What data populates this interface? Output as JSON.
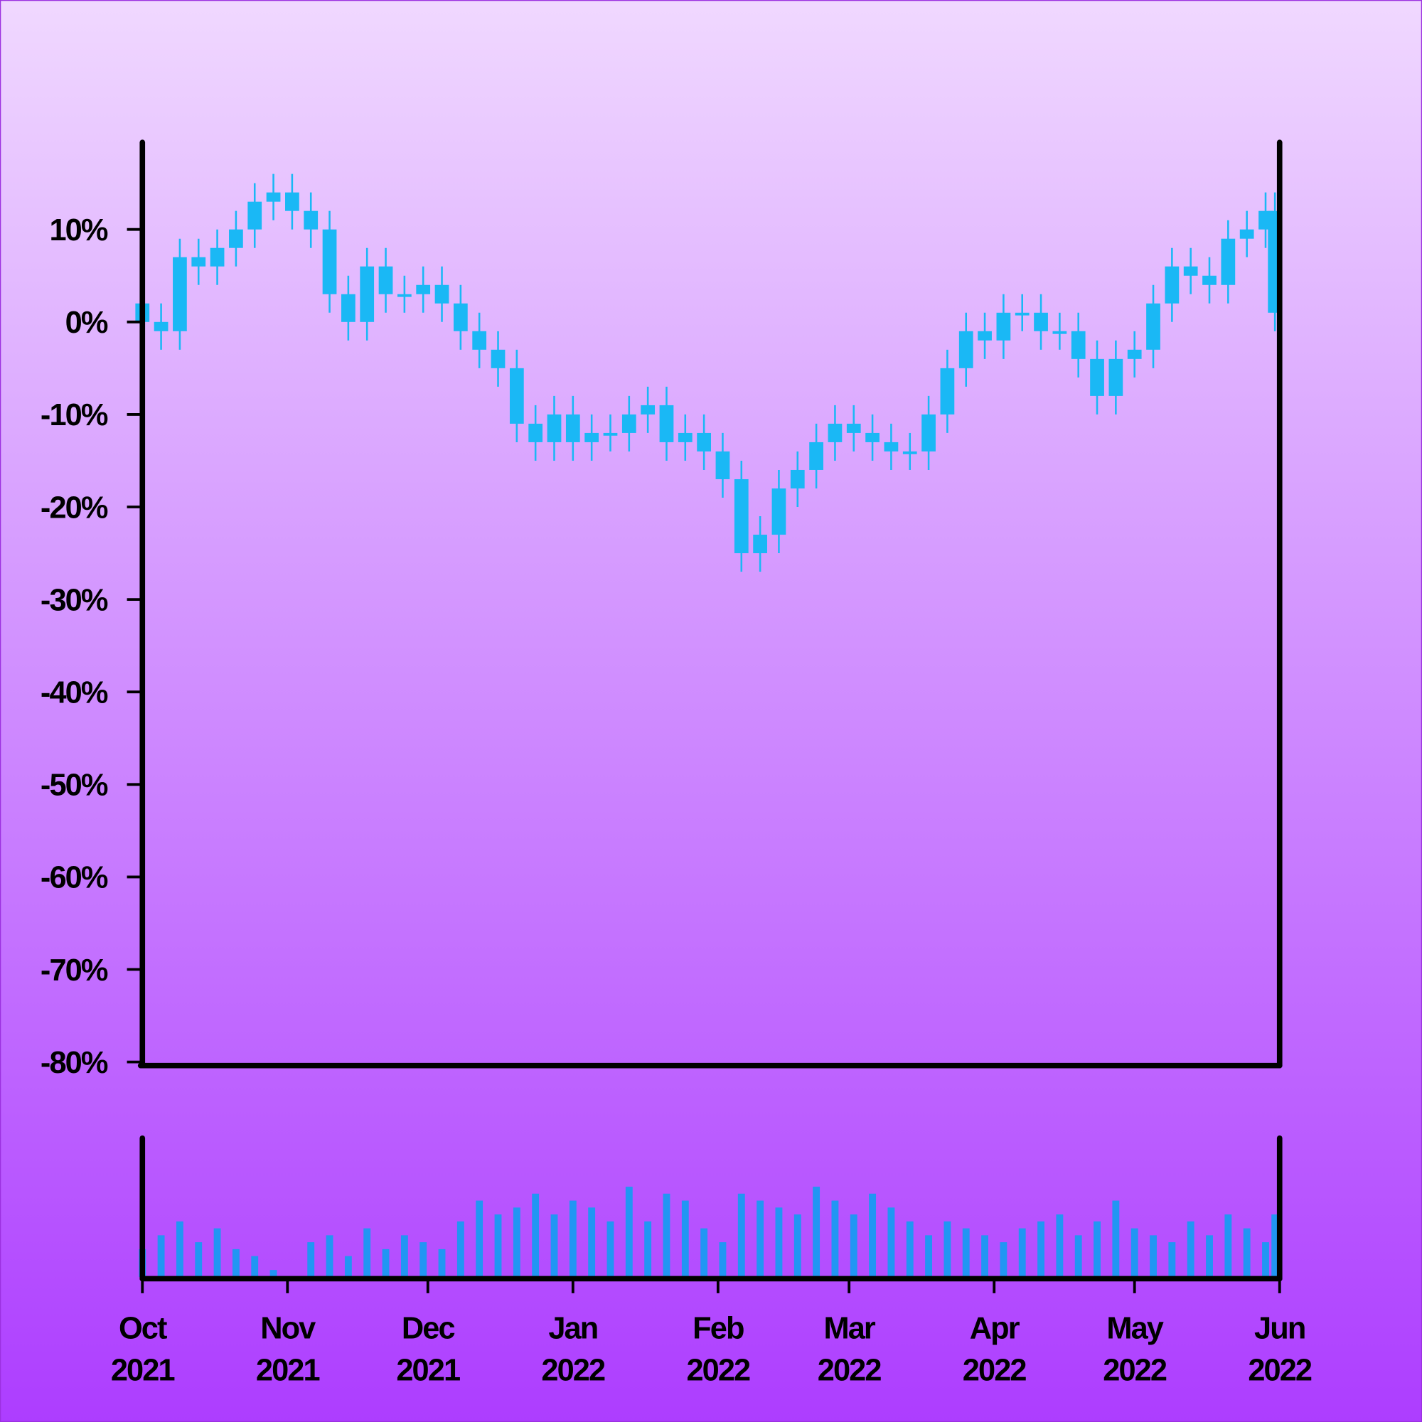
{
  "chart_data": {
    "type": "candlestick",
    "x": [
      0,
      4,
      8,
      12,
      16,
      20,
      24,
      28,
      32,
      36,
      40,
      44,
      48,
      52,
      56,
      60,
      64,
      68,
      72,
      76,
      80,
      84,
      88,
      92,
      96,
      100,
      104,
      108,
      112,
      116,
      120,
      124,
      128,
      132,
      136,
      140,
      144,
      148,
      152,
      156,
      160,
      164,
      168,
      172,
      176,
      180,
      184,
      188,
      192,
      196,
      200,
      204,
      208,
      212,
      216,
      220,
      224,
      228,
      232,
      236,
      240,
      242
    ],
    "open": [
      2,
      0,
      -1,
      7,
      6,
      8,
      10,
      13,
      14,
      12,
      10,
      3,
      0,
      6,
      3,
      3,
      4,
      2,
      -1,
      -3,
      -5,
      -11,
      -13,
      -10,
      -13,
      -12,
      -12,
      -10,
      -9,
      -13,
      -12,
      -14,
      -17,
      -25,
      -23,
      -18,
      -16,
      -13,
      -11,
      -12,
      -13,
      -14,
      -14,
      -10,
      -5,
      -1,
      -2,
      1,
      1,
      -1,
      -1,
      -4,
      -8,
      -4,
      -3,
      2,
      6,
      5,
      4,
      9,
      10,
      12
    ],
    "high": [
      4,
      2,
      9,
      9,
      10,
      12,
      15,
      16,
      16,
      14,
      12,
      5,
      8,
      8,
      5,
      6,
      6,
      4,
      1,
      -1,
      -3,
      -9,
      -8,
      -8,
      -10,
      -10,
      -8,
      -7,
      -7,
      -10,
      -10,
      -12,
      -15,
      -21,
      -16,
      -14,
      -11,
      -9,
      -9,
      -10,
      -11,
      -12,
      -8,
      -3,
      1,
      1,
      3,
      3,
      3,
      1,
      1,
      -2,
      -2,
      -1,
      4,
      8,
      8,
      7,
      11,
      12,
      14,
      14
    ],
    "low": [
      -2,
      -3,
      -3,
      4,
      4,
      6,
      8,
      11,
      10,
      8,
      1,
      -2,
      -2,
      1,
      1,
      1,
      0,
      -3,
      -5,
      -7,
      -13,
      -15,
      -15,
      -15,
      -15,
      -14,
      -14,
      -12,
      -15,
      -15,
      -16,
      -19,
      -27,
      -27,
      -25,
      -20,
      -18,
      -15,
      -14,
      -15,
      -16,
      -16,
      -16,
      -12,
      -7,
      -4,
      -4,
      -1,
      -3,
      -3,
      -6,
      -10,
      -10,
      -6,
      -5,
      0,
      3,
      2,
      2,
      7,
      8,
      -1
    ],
    "close": [
      0,
      -1,
      7,
      6,
      8,
      10,
      13,
      14,
      12,
      10,
      3,
      0,
      6,
      3,
      3,
      4,
      2,
      -1,
      -3,
      -5,
      -11,
      -13,
      -10,
      -13,
      -12,
      -12,
      -10,
      -9,
      -13,
      -12,
      -14,
      -17,
      -25,
      -23,
      -18,
      -16,
      -13,
      -11,
      -12,
      -13,
      -14,
      -14,
      -10,
      -5,
      -1,
      -2,
      1,
      1,
      -1,
      -1,
      -4,
      -8,
      -4,
      -3,
      2,
      6,
      5,
      4,
      9,
      10,
      12,
      1
    ],
    "volume": [
      20,
      30,
      40,
      25,
      35,
      20,
      15,
      5,
      0,
      25,
      30,
      15,
      35,
      20,
      30,
      25,
      20,
      40,
      55,
      45,
      50,
      60,
      45,
      55,
      50,
      40,
      65,
      40,
      60,
      55,
      35,
      25,
      60,
      55,
      50,
      45,
      65,
      55,
      45,
      60,
      50,
      40,
      30,
      40,
      35,
      30,
      25,
      35,
      40,
      45,
      30,
      40,
      55,
      35,
      30,
      25,
      40,
      30,
      45,
      35,
      25,
      45
    ],
    "color": "#1ab8f5",
    "volume_color": "#2196f3",
    "xlim": [
      0,
      243
    ],
    "xticks": [
      {
        "value": 0,
        "label": [
          "Oct",
          "2021"
        ]
      },
      {
        "value": 31,
        "label": [
          "Nov",
          "2021"
        ]
      },
      {
        "value": 61,
        "label": [
          "Dec",
          "2021"
        ]
      },
      {
        "value": 92,
        "label": [
          "Jan",
          "2022"
        ]
      },
      {
        "value": 123,
        "label": [
          "Feb",
          "2022"
        ]
      },
      {
        "value": 151,
        "label": [
          "Mar",
          "2022"
        ]
      },
      {
        "value": 182,
        "label": [
          "Apr",
          "2022"
        ]
      },
      {
        "value": 212,
        "label": [
          "May",
          "2022"
        ]
      },
      {
        "value": 243,
        "label": [
          "Jun",
          "2022"
        ]
      }
    ],
    "ylim": [
      -80,
      20
    ],
    "yticks": [
      {
        "value": 10,
        "label": "10%"
      },
      {
        "value": 0,
        "label": "0%"
      },
      {
        "value": -10,
        "label": "-10%"
      },
      {
        "value": -20,
        "label": "-20%"
      },
      {
        "value": -30,
        "label": "-30%"
      },
      {
        "value": -40,
        "label": "-40%"
      },
      {
        "value": -50,
        "label": "-50%"
      },
      {
        "value": -60,
        "label": "-60%"
      },
      {
        "value": -70,
        "label": "-70%"
      },
      {
        "value": -80,
        "label": "-80%"
      }
    ],
    "volume_ylim": [
      0,
      100
    ]
  }
}
